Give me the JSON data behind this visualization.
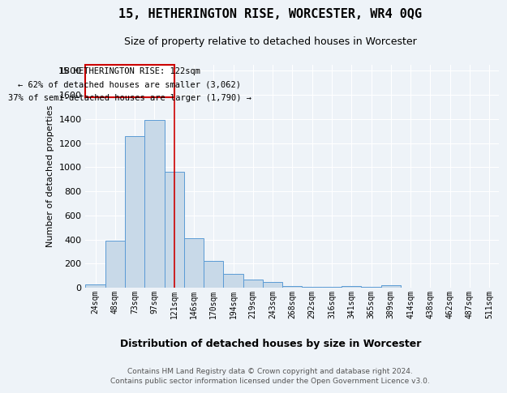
{
  "title": "15, HETHERINGTON RISE, WORCESTER, WR4 0QG",
  "subtitle": "Size of property relative to detached houses in Worcester",
  "xlabel": "Distribution of detached houses by size in Worcester",
  "ylabel": "Number of detached properties",
  "footer_line1": "Contains HM Land Registry data © Crown copyright and database right 2024.",
  "footer_line2": "Contains public sector information licensed under the Open Government Licence v3.0.",
  "categories": [
    "24sqm",
    "48sqm",
    "73sqm",
    "97sqm",
    "121sqm",
    "146sqm",
    "170sqm",
    "194sqm",
    "219sqm",
    "243sqm",
    "268sqm",
    "292sqm",
    "316sqm",
    "341sqm",
    "365sqm",
    "389sqm",
    "414sqm",
    "438sqm",
    "462sqm",
    "487sqm",
    "511sqm"
  ],
  "values": [
    25,
    390,
    1260,
    1390,
    960,
    410,
    225,
    115,
    65,
    50,
    15,
    10,
    8,
    12,
    5,
    20,
    0,
    0,
    0,
    0,
    0
  ],
  "bar_color": "#c8d9e8",
  "bar_edge_color": "#5b9bd5",
  "bg_color": "#eef3f8",
  "grid_color": "#ffffff",
  "property_line_x": 4,
  "annotation_text_line1": "15 HETHERINGTON RISE: 122sqm",
  "annotation_text_line2": "← 62% of detached houses are smaller (3,062)",
  "annotation_text_line3": "37% of semi-detached houses are larger (1,790) →",
  "annotation_box_color": "#ffffff",
  "annotation_border_color": "#cc0000",
  "vline_color": "#cc0000",
  "ylim": [
    0,
    1850
  ],
  "yticks": [
    0,
    200,
    400,
    600,
    800,
    1000,
    1200,
    1400,
    1600,
    1800
  ]
}
